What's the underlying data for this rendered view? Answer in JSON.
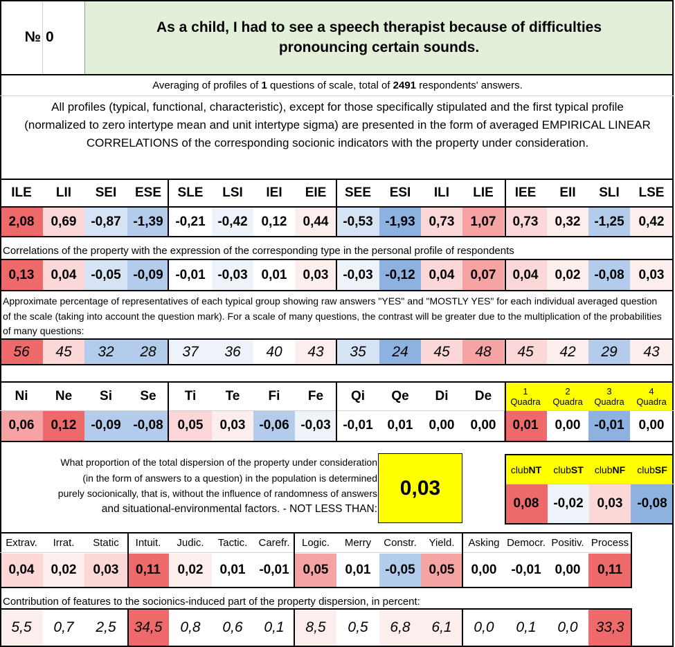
{
  "header": {
    "number_label": "№",
    "number_value": "0",
    "title": "As a child, I had to see a speech therapist because of difficulties pronouncing certain sounds."
  },
  "averaging": {
    "prefix": "Averaging of profiles of",
    "count": "1",
    "middle": "questions of scale, total of",
    "respondents": "2491",
    "suffix": "respondents' answers."
  },
  "description": "All profiles (typical, functional, characteristic), except for those specifically stipulated and the first typical profile (normalized to zero intertype mean and unit intertype sigma) are presented in the form of averaged EMPIRICAL LINEAR CORRELATIONS of the corresponding socionic indicators with the property under consideration.",
  "types": {
    "headers": [
      "ILE",
      "LII",
      "SEI",
      "ESE",
      "SLE",
      "LSI",
      "IEI",
      "EIE",
      "SEE",
      "ESI",
      "ILI",
      "LIE",
      "IEE",
      "EII",
      "SLI",
      "LSE"
    ],
    "profile": [
      "2,08",
      "0,69",
      "-0,87",
      "-1,39",
      "-0,21",
      "-0,42",
      "0,12",
      "0,44",
      "-0,53",
      "-1,93",
      "0,73",
      "1,07",
      "0,73",
      "0,32",
      "-1,25",
      "0,42"
    ],
    "correlation_note": "Correlations of the property with the expression of the corresponding type in the personal profile of respondents",
    "correlations": [
      "0,13",
      "0,04",
      "-0,05",
      "-0,09",
      "-0,01",
      "-0,03",
      "0,01",
      "0,03",
      "-0,03",
      "-0,12",
      "0,04",
      "0,07",
      "0,04",
      "0,02",
      "-0,08",
      "0,03"
    ],
    "percent_note": "Approximate percentage of representatives of each typical group showing raw answers \"YES\" and \"MOSTLY YES\" for each individual averaged question of the scale (taking into account the question mark). For a scale of many questions, the contrast will be greater due to the multiplication of the probabilities of many questions:",
    "percents": [
      "56",
      "45",
      "32",
      "28",
      "37",
      "36",
      "40",
      "43",
      "35",
      "24",
      "45",
      "48",
      "45",
      "42",
      "29",
      "43"
    ]
  },
  "functions": {
    "headers": [
      "Ni",
      "Ne",
      "Si",
      "Se",
      "Ti",
      "Te",
      "Fi",
      "Fe",
      "Qi",
      "Qe",
      "Di",
      "De"
    ],
    "values": [
      "0,06",
      "0,12",
      "-0,09",
      "-0,08",
      "0,05",
      "0,03",
      "-0,06",
      "-0,03",
      "-0,01",
      "0,01",
      "0,00",
      "0,00"
    ]
  },
  "quadras": {
    "numbers": [
      "1",
      "2",
      "3",
      "4"
    ],
    "word": "Quadra",
    "values": [
      "0,01",
      "0,00",
      "-0,01",
      "0,00"
    ]
  },
  "dispersion": {
    "lines": [
      "What proportion of the total dispersion of the property under consideration",
      "(in the form of answers to a question) in the population is determined",
      "purely socionically, that is, without the influence of randomness of answers",
      "and situational-environmental factors. - NOT LESS THAN:"
    ],
    "value": "0,03"
  },
  "clubs": {
    "prefix": "club",
    "names": [
      "NT",
      "ST",
      "NF",
      "SF"
    ],
    "values": [
      "0,08",
      "-0,02",
      "0,03",
      "-0,08"
    ]
  },
  "features": {
    "headers": [
      "Extrav.",
      "Irrat.",
      "Static",
      "Intuit.",
      "Judic.",
      "Tactic.",
      "Carefr.",
      "Logic.",
      "Merry",
      "Constr.",
      "Yield.",
      "Asking",
      "Democr.",
      "Positiv.",
      "Process"
    ],
    "values": [
      "0,04",
      "0,02",
      "0,03",
      "0,11",
      "0,02",
      "0,01",
      "-0,01",
      "0,05",
      "0,01",
      "-0,05",
      "0,05",
      "0,00",
      "-0,01",
      "0,00",
      "0,11"
    ],
    "contribution_note": "Contribution of features to the socionics-induced part of the property dispersion, in percent:",
    "contributions": [
      "5,5",
      "0,7",
      "2,5",
      "34,5",
      "0,8",
      "0,6",
      "0,1",
      "8,5",
      "0,5",
      "6,8",
      "6,1",
      "0,0",
      "0,1",
      "0,0",
      "33,3"
    ]
  },
  "colors": {
    "strong_red": "#ee6a6a",
    "mid_red": "#f5a3a3",
    "light_red": "#fbd7d7",
    "pale_red": "#fdeeee",
    "strong_blue": "#8db2e0",
    "mid_blue": "#b3cceb",
    "light_blue": "#d6e3f4",
    "pale_blue": "#eef3fa",
    "white": "#ffffff",
    "yellow": "#ffff00",
    "title_green": "#e2efd9"
  }
}
